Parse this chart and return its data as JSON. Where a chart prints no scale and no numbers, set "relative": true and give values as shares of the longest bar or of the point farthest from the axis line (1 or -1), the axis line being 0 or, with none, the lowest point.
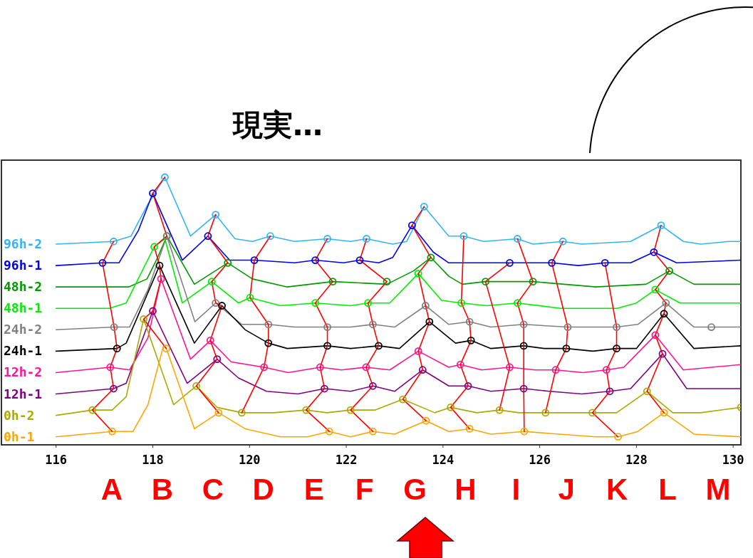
{
  "chart_data": {
    "type": "line",
    "title": "現実…",
    "relative": true,
    "xlim": [
      114.87,
      130.16
    ],
    "xticks": [
      116,
      118,
      120,
      122,
      124,
      126,
      128,
      130
    ],
    "annotations": [
      "A",
      "B",
      "C",
      "D",
      "E",
      "F",
      "G",
      "H",
      "I",
      "J",
      "K",
      "L",
      "M"
    ],
    "series": [
      {
        "type": "line",
        "name": "96h-2",
        "color": "#33b5f5",
        "x": [
          116,
          117.19,
          117.55,
          117.9,
          118.25,
          118.78,
          119.3,
          119.7,
          120.06,
          120.43,
          120.93,
          121.61,
          122.09,
          122.42,
          122.96,
          123.25,
          123.61,
          124.12,
          124.43,
          124.84,
          125.54,
          125.86,
          126.48,
          126.87,
          127.88,
          128.51,
          128.97,
          129.33,
          129.91,
          130.16
        ],
        "values": [
          0.75,
          0.76,
          0.78,
          0.9,
          1.0,
          0.78,
          0.86,
          0.77,
          0.76,
          0.78,
          0.76,
          0.77,
          0.76,
          0.77,
          0.75,
          0.76,
          0.89,
          0.78,
          0.78,
          0.76,
          0.77,
          0.75,
          0.76,
          0.75,
          0.76,
          0.82,
          0.76,
          0.75,
          0.76,
          0.76
        ]
      },
      {
        "type": "line",
        "name": "96h-1",
        "color": "#0000ee",
        "x": [
          116,
          116.96,
          117.3,
          117.7,
          118.0,
          118.61,
          119.14,
          119.59,
          120.1,
          120.93,
          121.36,
          121.94,
          122.28,
          122.67,
          122.96,
          123.36,
          123.8,
          124.12,
          124.99,
          125.38,
          126.25,
          126.8,
          127.35,
          127.88,
          128.36,
          128.83,
          130.16
        ],
        "values": [
          0.67,
          0.68,
          0.68,
          0.8,
          0.94,
          0.69,
          0.78,
          0.69,
          0.69,
          0.68,
          0.69,
          0.68,
          0.69,
          0.68,
          0.7,
          0.82,
          0.72,
          0.68,
          0.68,
          0.68,
          0.68,
          0.67,
          0.68,
          0.68,
          0.72,
          0.68,
          0.69
        ]
      },
      {
        "type": "line",
        "name": "48h-2",
        "color": "#009900",
        "x": [
          116,
          117.5,
          117.88,
          118.1,
          118.29,
          118.86,
          119.55,
          120.06,
          120.78,
          121.72,
          122.84,
          123.39,
          123.75,
          124.12,
          124.4,
          124.88,
          125.86,
          127.16,
          128.2,
          128.68,
          129.19,
          130.16
        ],
        "values": [
          0.59,
          0.59,
          0.62,
          0.7,
          0.78,
          0.6,
          0.68,
          0.62,
          0.59,
          0.61,
          0.6,
          0.65,
          0.7,
          0.63,
          0.6,
          0.61,
          0.61,
          0.59,
          0.6,
          0.65,
          0.6,
          0.6
        ]
      },
      {
        "type": "line",
        "name": "48h-1",
        "color": "#00ee00",
        "x": [
          116,
          117.1,
          117.45,
          118.03,
          118.25,
          118.61,
          119.22,
          119.77,
          120.01,
          120.64,
          121.36,
          122.09,
          122.45,
          122.9,
          123.49,
          123.97,
          124.38,
          124.9,
          125.54,
          126.43,
          127.6,
          128.0,
          128.39,
          128.9,
          130.16
        ],
        "values": [
          0.51,
          0.51,
          0.53,
          0.74,
          0.77,
          0.53,
          0.61,
          0.53,
          0.55,
          0.52,
          0.53,
          0.52,
          0.53,
          0.53,
          0.64,
          0.54,
          0.53,
          0.52,
          0.53,
          0.51,
          0.51,
          0.53,
          0.58,
          0.53,
          0.53
        ]
      },
      {
        "type": "line",
        "name": "24h-2",
        "color": "#808080",
        "x": [
          116,
          117.2,
          117.52,
          117.9,
          118.29,
          118.87,
          119.3,
          119.84,
          120.39,
          120.93,
          121.61,
          122.09,
          122.55,
          123.0,
          123.64,
          124.12,
          124.55,
          124.99,
          125.67,
          126.58,
          127.59,
          128.03,
          128.61,
          129.19,
          129.55,
          130.16
        ],
        "values": [
          0.43,
          0.44,
          0.44,
          0.58,
          0.78,
          0.46,
          0.53,
          0.45,
          0.45,
          0.44,
          0.44,
          0.44,
          0.45,
          0.44,
          0.52,
          0.45,
          0.46,
          0.44,
          0.45,
          0.44,
          0.44,
          0.45,
          0.53,
          0.44,
          0.44,
          0.44
        ]
      },
      {
        "type": "line",
        "name": "24h-1",
        "color": "#000000",
        "x": [
          116,
          117.26,
          117.45,
          118.14,
          118.86,
          119.43,
          119.91,
          120.39,
          120.78,
          121.61,
          122.09,
          122.67,
          123.1,
          123.72,
          124.26,
          124.58,
          124.99,
          125.67,
          126.1,
          126.55,
          127.1,
          127.59,
          128.0,
          128.57,
          129.19,
          130.16
        ],
        "values": [
          0.35,
          0.36,
          0.38,
          0.67,
          0.38,
          0.52,
          0.43,
          0.38,
          0.36,
          0.37,
          0.36,
          0.37,
          0.36,
          0.46,
          0.38,
          0.39,
          0.36,
          0.37,
          0.36,
          0.36,
          0.35,
          0.36,
          0.36,
          0.49,
          0.36,
          0.37
        ]
      },
      {
        "type": "line",
        "name": "12h-2",
        "color": "#ff1493",
        "x": [
          116,
          117.12,
          117.52,
          117.9,
          118.17,
          118.78,
          119.19,
          119.62,
          120.3,
          120.8,
          121.46,
          121.9,
          122.41,
          122.9,
          123.49,
          124.12,
          124.36,
          124.8,
          125.38,
          125.9,
          126.33,
          126.9,
          127.38,
          127.74,
          128.39,
          128.97,
          130.16
        ],
        "values": [
          0.27,
          0.29,
          0.28,
          0.4,
          0.62,
          0.32,
          0.39,
          0.31,
          0.29,
          0.27,
          0.29,
          0.28,
          0.29,
          0.28,
          0.35,
          0.29,
          0.3,
          0.28,
          0.29,
          0.28,
          0.28,
          0.27,
          0.28,
          0.29,
          0.41,
          0.28,
          0.3
        ]
      },
      {
        "type": "line",
        "name": "12h-1",
        "color": "#800080",
        "x": [
          116,
          117.19,
          117.45,
          118.0,
          118.71,
          119.33,
          119.77,
          120.35,
          121.0,
          121.55,
          122.09,
          122.55,
          123.0,
          123.58,
          124.12,
          124.52,
          124.99,
          125.67,
          126.2,
          126.87,
          127.45,
          127.88,
          128.54,
          129.04,
          130.16
        ],
        "values": [
          0.19,
          0.21,
          0.23,
          0.5,
          0.23,
          0.32,
          0.25,
          0.2,
          0.19,
          0.21,
          0.2,
          0.22,
          0.2,
          0.28,
          0.22,
          0.22,
          0.2,
          0.21,
          0.2,
          0.19,
          0.2,
          0.21,
          0.34,
          0.21,
          0.21
        ]
      },
      {
        "type": "line",
        "name": "0h-2",
        "color": "#aaaa00",
        "x": [
          116,
          116.75,
          117.16,
          117.45,
          117.81,
          118.43,
          118.9,
          119.33,
          119.84,
          120.5,
          121.17,
          121.6,
          122.09,
          122.6,
          123.17,
          123.83,
          124.16,
          124.7,
          125.17,
          125.57,
          126.12,
          126.6,
          127.09,
          127.59,
          128.22,
          128.75,
          129.33,
          130.16
        ],
        "values": [
          0.11,
          0.13,
          0.13,
          0.18,
          0.47,
          0.15,
          0.22,
          0.14,
          0.12,
          0.12,
          0.13,
          0.12,
          0.13,
          0.13,
          0.17,
          0.12,
          0.14,
          0.12,
          0.13,
          0.12,
          0.12,
          0.12,
          0.12,
          0.12,
          0.2,
          0.12,
          0.12,
          0.14
        ]
      },
      {
        "type": "line",
        "name": "0h-1",
        "color": "#ffa500",
        "x": [
          116,
          117.16,
          117.59,
          117.9,
          118.22,
          118.28,
          118.86,
          119.36,
          119.91,
          120.64,
          121.2,
          121.65,
          122.09,
          122.55,
          123.0,
          123.65,
          124.12,
          124.55,
          124.99,
          125.68,
          126.4,
          127.16,
          127.62,
          128.03,
          128.57,
          129.19,
          130.16
        ],
        "values": [
          0.03,
          0.05,
          0.05,
          0.15,
          0.37,
          0.36,
          0.06,
          0.12,
          0.06,
          0.03,
          0.03,
          0.05,
          0.03,
          0.05,
          0.04,
          0.09,
          0.05,
          0.06,
          0.04,
          0.05,
          0.04,
          0.03,
          0.03,
          0.05,
          0.12,
          0.04,
          0.03
        ]
      },
      {
        "type": "line",
        "color": "#ff0000",
        "x": [
          117.19,
          116.96,
          117.2,
          117.26,
          117.12,
          117.19,
          116.75,
          117.16
        ],
        "values": [
          0.76,
          0.68,
          0.44,
          0.36,
          0.29,
          0.21,
          0.13,
          0.05
        ]
      },
      {
        "type": "line",
        "color": "#ff0000",
        "x": [
          118.25,
          118.0,
          118.29,
          118.03,
          118.14,
          118.17,
          118.0,
          117.81,
          118.28
        ],
        "values": [
          1.0,
          0.94,
          0.78,
          0.74,
          0.67,
          0.62,
          0.5,
          0.47,
          0.36
        ]
      },
      {
        "type": "line",
        "color": "#ff0000",
        "x": [
          119.3,
          119.14,
          119.55,
          119.22,
          119.3,
          119.43,
          119.19,
          119.33,
          118.9,
          119.36
        ],
        "values": [
          0.86,
          0.78,
          0.68,
          0.61,
          0.53,
          0.52,
          0.39,
          0.32,
          0.22,
          0.12
        ]
      },
      {
        "type": "line",
        "color": "#ff0000",
        "x": [
          120.43,
          120.1,
          120.01,
          120.39,
          120.39,
          120.3,
          119.84
        ],
        "values": [
          0.78,
          0.69,
          0.55,
          0.45,
          0.38,
          0.29,
          0.12
        ]
      },
      {
        "type": "line",
        "color": "#ff0000",
        "x": [
          121.61,
          121.36,
          121.72,
          121.36,
          121.61,
          121.61,
          121.46,
          121.55,
          121.17,
          121.65
        ],
        "values": [
          0.77,
          0.69,
          0.61,
          0.53,
          0.44,
          0.37,
          0.29,
          0.21,
          0.13,
          0.05
        ]
      },
      {
        "type": "line",
        "color": "#ff0000",
        "x": [
          122.42,
          122.28,
          122.84,
          122.45,
          122.55,
          122.67,
          122.41,
          122.55,
          122.09,
          122.55
        ],
        "values": [
          0.77,
          0.69,
          0.61,
          0.53,
          0.45,
          0.37,
          0.29,
          0.22,
          0.13,
          0.05
        ]
      },
      {
        "type": "line",
        "color": "#ff0000",
        "x": [
          123.61,
          123.36,
          123.75,
          123.49,
          123.64,
          123.72,
          123.49,
          123.58,
          123.17,
          123.65
        ],
        "values": [
          0.89,
          0.82,
          0.7,
          0.64,
          0.52,
          0.46,
          0.35,
          0.28,
          0.17,
          0.09
        ]
      },
      {
        "type": "line",
        "color": "#ff0000",
        "x": [
          124.43,
          124.38,
          124.55,
          124.58,
          124.36,
          124.52,
          124.16,
          124.55
        ],
        "values": [
          0.78,
          0.53,
          0.46,
          0.39,
          0.3,
          0.22,
          0.14,
          0.06
        ]
      },
      {
        "type": "line",
        "color": "#ff0000",
        "x": [
          125.38,
          124.88,
          125.38,
          125.17
        ],
        "values": [
          0.68,
          0.61,
          0.29,
          0.13
        ]
      },
      {
        "type": "line",
        "color": "#ff0000",
        "x": [
          125.54,
          125.86,
          125.54,
          125.67,
          125.67,
          125.67,
          125.68
        ],
        "values": [
          0.77,
          0.61,
          0.53,
          0.45,
          0.37,
          0.21,
          0.05
        ]
      },
      {
        "type": "line",
        "color": "#ff0000",
        "x": [
          126.48,
          126.25,
          126.58,
          126.55,
          126.33,
          126.12
        ],
        "values": [
          0.76,
          0.68,
          0.44,
          0.36,
          0.28,
          0.12
        ]
      },
      {
        "type": "line",
        "color": "#ff0000",
        "x": [
          127.35,
          127.59,
          127.59,
          127.38,
          127.45,
          127.09,
          127.62
        ],
        "values": [
          0.68,
          0.44,
          0.36,
          0.28,
          0.2,
          0.12,
          0.03
        ]
      },
      {
        "type": "line",
        "color": "#ff0000",
        "x": [
          128.51,
          128.36,
          128.68,
          128.39,
          128.61,
          128.57,
          128.39,
          128.54,
          128.22,
          128.57
        ],
        "values": [
          0.82,
          0.72,
          0.65,
          0.58,
          0.53,
          0.49,
          0.41,
          0.34,
          0.2,
          0.12
        ]
      },
      {
        "type": "scatter",
        "marker": "circle",
        "color": "#33b5f5",
        "x": [
          117.19,
          118.25,
          119.3,
          120.43,
          121.61,
          122.42,
          123.61,
          124.43,
          125.54,
          126.48,
          128.51
        ],
        "values": [
          0.76,
          1.0,
          0.86,
          0.78,
          0.77,
          0.77,
          0.89,
          0.78,
          0.77,
          0.76,
          0.82
        ]
      },
      {
        "type": "scatter",
        "marker": "circle",
        "color": "#0000ee",
        "x": [
          116.96,
          118.0,
          119.14,
          120.1,
          121.36,
          122.28,
          123.36,
          125.38,
          126.25,
          127.35,
          128.36
        ],
        "values": [
          0.68,
          0.94,
          0.78,
          0.69,
          0.69,
          0.69,
          0.82,
          0.68,
          0.68,
          0.68,
          0.72
        ]
      },
      {
        "type": "scatter",
        "marker": "circle",
        "color": "#009900",
        "x": [
          118.29,
          119.55,
          121.72,
          122.84,
          123.75,
          124.88,
          125.86,
          128.68
        ],
        "values": [
          0.78,
          0.68,
          0.61,
          0.61,
          0.7,
          0.61,
          0.61,
          0.65
        ]
      },
      {
        "type": "scatter",
        "marker": "circle",
        "color": "#00ee00",
        "x": [
          118.03,
          119.22,
          120.01,
          121.36,
          122.45,
          123.49,
          124.38,
          125.54,
          128.39
        ],
        "values": [
          0.74,
          0.61,
          0.55,
          0.53,
          0.53,
          0.64,
          0.53,
          0.53,
          0.58
        ]
      },
      {
        "type": "scatter",
        "marker": "circle",
        "color": "#808080",
        "x": [
          117.2,
          118.29,
          119.3,
          120.39,
          121.61,
          122.55,
          123.64,
          124.55,
          125.67,
          126.58,
          127.59,
          128.61,
          129.55
        ],
        "values": [
          0.44,
          0.78,
          0.53,
          0.45,
          0.44,
          0.45,
          0.52,
          0.46,
          0.45,
          0.44,
          0.44,
          0.53,
          0.44
        ]
      },
      {
        "type": "scatter",
        "marker": "circle",
        "color": "#000000",
        "x": [
          117.26,
          118.14,
          119.43,
          120.39,
          121.61,
          122.67,
          123.72,
          124.58,
          125.67,
          126.55,
          127.59,
          128.57
        ],
        "values": [
          0.36,
          0.67,
          0.52,
          0.38,
          0.37,
          0.37,
          0.46,
          0.39,
          0.37,
          0.36,
          0.36,
          0.49
        ]
      },
      {
        "type": "scatter",
        "marker": "circle",
        "color": "#ff1493",
        "x": [
          117.12,
          118.17,
          119.19,
          120.3,
          121.46,
          122.41,
          123.49,
          124.36,
          125.38,
          126.33,
          127.38,
          128.39
        ],
        "values": [
          0.29,
          0.62,
          0.39,
          0.29,
          0.29,
          0.29,
          0.35,
          0.3,
          0.29,
          0.28,
          0.28,
          0.41
        ]
      },
      {
        "type": "scatter",
        "marker": "circle",
        "color": "#800080",
        "x": [
          117.19,
          118.0,
          119.33,
          121.55,
          122.55,
          123.58,
          124.52,
          125.67,
          127.45,
          128.54
        ],
        "values": [
          0.21,
          0.5,
          0.32,
          0.21,
          0.22,
          0.28,
          0.22,
          0.21,
          0.2,
          0.34
        ]
      },
      {
        "type": "scatter",
        "marker": "circle",
        "color": "#aaaa00",
        "x": [
          116.75,
          117.81,
          118.9,
          119.84,
          121.17,
          122.09,
          123.17,
          124.16,
          125.17,
          126.12,
          127.09,
          128.22,
          130.16
        ],
        "values": [
          0.13,
          0.47,
          0.22,
          0.12,
          0.13,
          0.13,
          0.17,
          0.14,
          0.13,
          0.12,
          0.12,
          0.2,
          0.14
        ]
      },
      {
        "type": "scatter",
        "marker": "circle",
        "color": "#ffa500",
        "x": [
          117.16,
          118.28,
          119.36,
          121.65,
          122.55,
          123.65,
          124.55,
          125.68,
          127.62,
          128.57
        ],
        "values": [
          0.05,
          0.36,
          0.12,
          0.05,
          0.05,
          0.09,
          0.06,
          0.05,
          0.03,
          0.12
        ]
      }
    ]
  }
}
